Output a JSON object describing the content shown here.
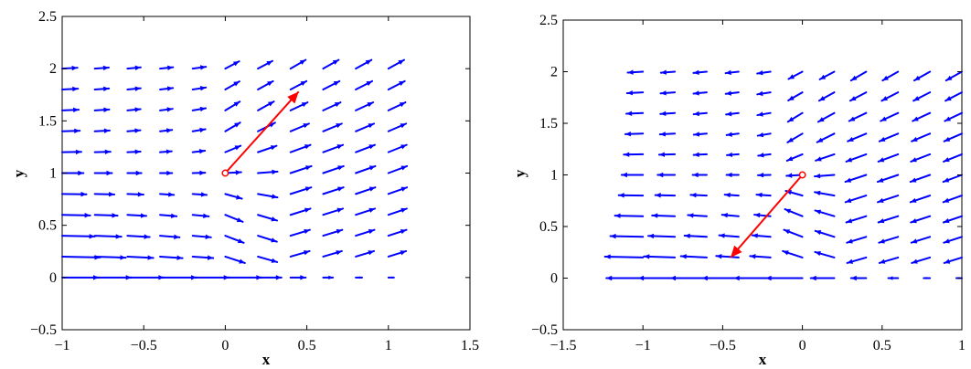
{
  "chart_data": [
    {
      "type": "quiver",
      "xlabel": "x",
      "ylabel": "y",
      "xlim": [
        -1,
        1.5
      ],
      "ylim": [
        -0.5,
        2.5
      ],
      "xticks": [
        "−1",
        "−0.5",
        "0",
        "0.5",
        "1",
        "1.5"
      ],
      "yticks": [
        "−0.5",
        "0",
        "0.5",
        "1",
        "1.5",
        "2",
        "2.5"
      ],
      "grid": false,
      "field_color": "#0000ff",
      "highlight_color": "#ff0000",
      "field_grid": {
        "x": [
          -1.0,
          -0.8,
          -0.6,
          -0.4,
          -0.2,
          0.0,
          0.2,
          0.4,
          0.6,
          0.8,
          1.0
        ],
        "y": [
          0.0,
          0.2,
          0.4,
          0.6,
          0.8,
          1.0,
          1.2,
          1.4,
          1.6,
          1.8,
          2.0
        ]
      },
      "field_rule": "outflow",
      "highlight_vector": {
        "origin": [
          0,
          1
        ],
        "end": [
          0.45,
          1.78
        ]
      }
    },
    {
      "type": "quiver",
      "xlabel": "x",
      "ylabel": "y",
      "xlim": [
        -1.5,
        1
      ],
      "ylim": [
        -0.5,
        2.5
      ],
      "xticks": [
        "−1.5",
        "−1",
        "−0.5",
        "0",
        "0.5",
        "1"
      ],
      "yticks": [
        "−0.5",
        "0",
        "0.5",
        "1",
        "1.5",
        "2",
        "2.5"
      ],
      "grid": false,
      "field_color": "#0000ff",
      "highlight_color": "#ff0000",
      "field_grid": {
        "x": [
          -1.0,
          -0.8,
          -0.6,
          -0.4,
          -0.2,
          0.0,
          0.2,
          0.4,
          0.6,
          0.8,
          1.0
        ],
        "y": [
          0.0,
          0.2,
          0.4,
          0.6,
          0.8,
          1.0,
          1.2,
          1.4,
          1.6,
          1.8,
          2.0
        ]
      },
      "field_rule": "inflow",
      "highlight_vector": {
        "origin": [
          0,
          1
        ],
        "end": [
          -0.45,
          0.2
        ]
      }
    }
  ]
}
